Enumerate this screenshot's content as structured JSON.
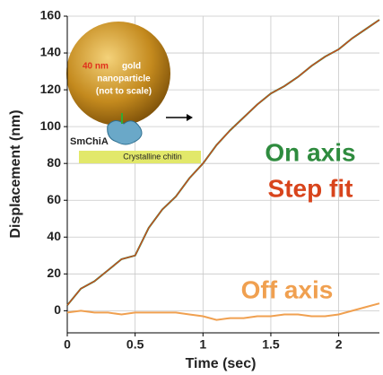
{
  "chart_data": {
    "type": "line",
    "x_label": "Time (sec)",
    "y_label": "Displacement (nm)",
    "x": [
      0,
      0.1,
      0.2,
      0.3,
      0.4,
      0.5,
      0.6,
      0.7,
      0.8,
      0.9,
      1.0,
      1.1,
      1.2,
      1.3,
      1.4,
      1.5,
      1.6,
      1.7,
      1.8,
      1.9,
      2.0,
      2.1,
      2.2,
      2.3
    ],
    "series": [
      {
        "name": "On axis",
        "color": "#2e8b3e",
        "values": [
          3,
          12,
          16,
          22,
          28,
          30,
          45,
          55,
          62,
          72,
          80,
          90,
          98,
          105,
          112,
          118,
          122,
          127,
          133,
          138,
          142,
          148,
          153,
          158
        ]
      },
      {
        "name": "Step fit",
        "color": "#d8441c",
        "values": [
          3,
          12,
          16,
          22,
          28,
          30,
          45,
          55,
          62,
          72,
          80,
          90,
          98,
          105,
          112,
          118,
          122,
          127,
          133,
          138,
          142,
          148,
          153,
          158
        ]
      },
      {
        "name": "Off axis",
        "color": "#f0a050",
        "values": [
          -1,
          0,
          -1,
          -1,
          -2,
          -1,
          -1,
          -1,
          -1,
          -2,
          -3,
          -5,
          -4,
          -4,
          -3,
          -3,
          -2,
          -2,
          -3,
          -3,
          -2,
          0,
          2,
          4
        ]
      }
    ],
    "xlim": [
      0,
      2.3
    ],
    "ylim": [
      -12,
      160
    ],
    "xticks": [
      0,
      0.5,
      1,
      1.5,
      2
    ],
    "yticks": [
      0,
      20,
      40,
      60,
      80,
      100,
      120,
      140,
      160
    ],
    "grid": true,
    "inset": {
      "particle_size": "40 nm",
      "particle_label_1": "gold",
      "particle_label_2": "nanoparticle",
      "particle_label_3": "(not to scale)",
      "enzyme": "SmChiA",
      "substrate": "Crystalline chitin"
    }
  }
}
